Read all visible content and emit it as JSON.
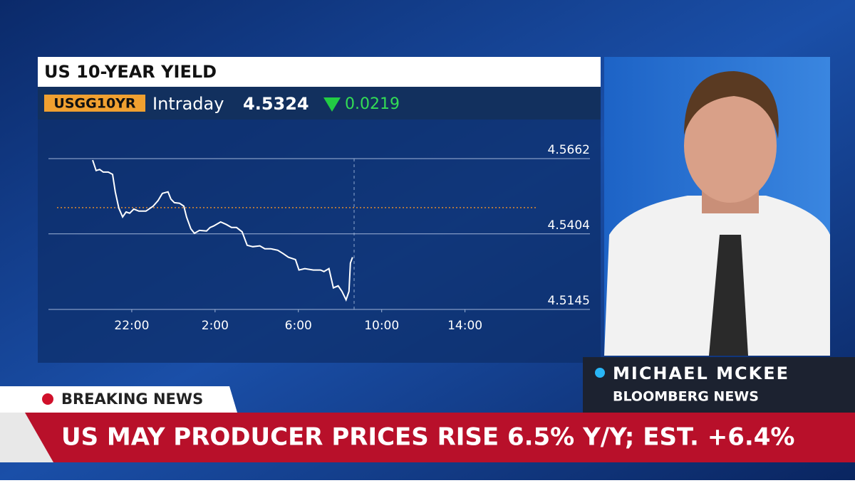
{
  "panel": {
    "ticker": "USGG10YR",
    "mode": "Intraday",
    "last": "4.5324",
    "change": "0.0219"
  },
  "chart_data": {
    "type": "line",
    "title": "US 10-YEAR YIELD",
    "x": [
      20.12,
      20.29,
      20.46,
      20.63,
      20.87,
      21.08,
      21.21,
      21.38,
      21.56,
      21.73,
      21.9,
      22.1,
      22.34,
      22.68,
      23.03,
      23.26,
      23.47,
      23.74,
      23.88,
      24.05,
      24.29,
      24.5,
      24.63,
      24.84,
      25.01,
      25.25,
      25.59,
      25.76,
      25.93,
      26.27,
      26.55,
      26.79,
      27.03,
      27.3,
      27.54,
      27.81,
      28.15,
      28.39,
      28.67,
      29.01,
      29.28,
      29.52,
      29.86,
      30.03,
      30.31,
      30.72,
      31.06,
      31.23,
      31.47,
      31.68,
      31.91,
      32.09,
      32.29,
      32.43,
      32.5,
      32.6
    ],
    "series": [
      {
        "name": "USGG10YR",
        "color": "#ffffff",
        "values": [
          4.5657,
          4.5621,
          4.5625,
          4.5616,
          4.5616,
          4.5608,
          4.5548,
          4.5492,
          4.5462,
          4.5479,
          4.5475,
          4.5489,
          4.5482,
          4.5482,
          4.5499,
          4.5518,
          4.5543,
          4.5548,
          4.5523,
          4.5511,
          4.5509,
          4.5499,
          4.5462,
          4.5421,
          4.5406,
          4.5416,
          4.5414,
          4.5426,
          4.5431,
          4.5445,
          4.5436,
          4.5426,
          4.5426,
          4.5411,
          4.5365,
          4.536,
          4.5363,
          4.5353,
          4.5353,
          4.5348,
          4.5336,
          4.5324,
          4.5316,
          4.528,
          4.5285,
          4.528,
          4.528,
          4.5275,
          4.5285,
          4.5219,
          4.5226,
          4.5207,
          4.5178,
          4.5207,
          4.5304,
          4.5324
        ]
      }
    ],
    "xlim": [
      18,
      44
    ],
    "xticks": [
      {
        "value": 22,
        "label": "22:00"
      },
      {
        "value": 26,
        "label": "2:00"
      },
      {
        "value": 30,
        "label": "6:00"
      },
      {
        "value": 34,
        "label": "10:00"
      },
      {
        "value": 38,
        "label": "14:00"
      }
    ],
    "ylim": [
      4.5145,
      4.5662
    ],
    "yticks": [
      4.5662,
      4.5404,
      4.5145
    ],
    "reference_line": 4.5494,
    "grid": true
  },
  "lower_third": {
    "name": "MICHAEL MCKEE",
    "affiliation": "BLOOMBERG NEWS",
    "tag": "BREAKING NEWS",
    "headline": "US MAY PRODUCER PRICES RISE 6.5% Y/Y; EST. +6.4%"
  }
}
